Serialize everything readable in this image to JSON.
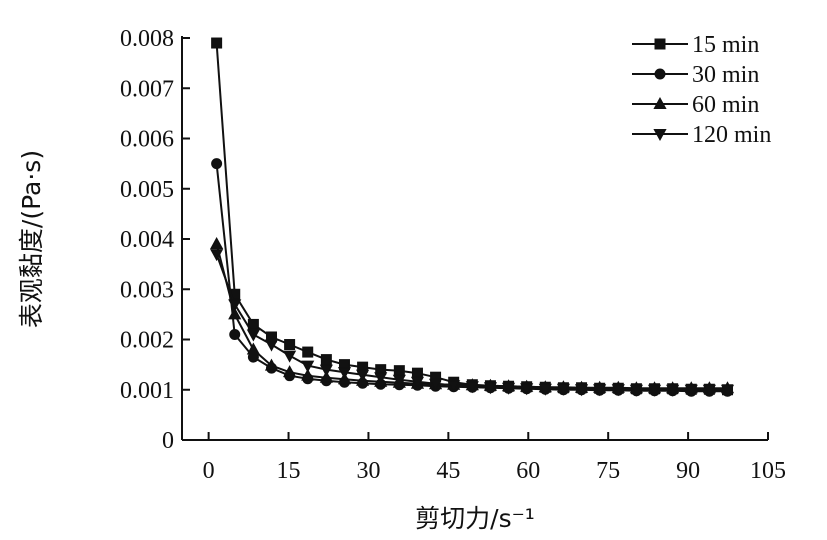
{
  "chart_data": {
    "type": "line",
    "title": "",
    "xlabel": "剪切力/s⁻¹",
    "ylabel": "表观黏度/(Pa·s)",
    "xlim": [
      -5,
      105
    ],
    "ylim": [
      0,
      0.008
    ],
    "x_ticks": [
      0,
      15,
      30,
      45,
      60,
      75,
      90,
      105
    ],
    "x_tick_labels": [
      "0",
      "15",
      "30",
      "45",
      "60",
      "75",
      "90",
      "105"
    ],
    "y_ticks": [
      0,
      0.001,
      0.002,
      0.003,
      0.004,
      0.005,
      0.006,
      0.007,
      0.008
    ],
    "y_tick_labels": [
      "0",
      "0.001",
      "0.002",
      "0.003",
      "0.004",
      "0.005",
      "0.006",
      "0.007",
      "0.008"
    ],
    "grid": false,
    "legend_position": "top-right",
    "x": [
      1.5,
      4.9,
      8.4,
      11.8,
      15.2,
      18.6,
      22.1,
      25.5,
      28.9,
      32.3,
      35.8,
      39.2,
      42.6,
      46.0,
      49.5,
      52.9,
      56.3,
      59.7,
      63.2,
      66.6,
      70.0,
      73.4,
      76.9,
      80.3,
      83.7,
      87.1,
      90.6,
      94.0,
      97.4
    ],
    "series": [
      {
        "name": "15 min",
        "marker": "square",
        "values": [
          0.0079,
          0.0029,
          0.0023,
          0.00205,
          0.0019,
          0.00175,
          0.0016,
          0.0015,
          0.00145,
          0.0014,
          0.00138,
          0.00133,
          0.00125,
          0.00115,
          0.0011,
          0.00108,
          0.00107,
          0.00106,
          0.00105,
          0.00104,
          0.00104,
          0.00103,
          0.00103,
          0.00102,
          0.00102,
          0.00102,
          0.00101,
          0.00101,
          0.001
        ]
      },
      {
        "name": "30 min",
        "marker": "circle",
        "values": [
          0.0055,
          0.0021,
          0.00165,
          0.00143,
          0.00128,
          0.00122,
          0.00118,
          0.00115,
          0.00113,
          0.00111,
          0.0011,
          0.00109,
          0.00107,
          0.00106,
          0.00105,
          0.00104,
          0.00103,
          0.00102,
          0.00101,
          0.001,
          0.001,
          0.00099,
          0.00099,
          0.00098,
          0.00098,
          0.00098,
          0.00097,
          0.00097,
          0.00097
        ]
      },
      {
        "name": "60 min",
        "marker": "triangle-up",
        "values": [
          0.0039,
          0.0025,
          0.0018,
          0.00148,
          0.00135,
          0.00128,
          0.00124,
          0.00121,
          0.00118,
          0.00116,
          0.00114,
          0.00112,
          0.00111,
          0.0011,
          0.00109,
          0.00108,
          0.00107,
          0.00106,
          0.00105,
          0.00105,
          0.00104,
          0.00104,
          0.00104,
          0.00103,
          0.00103,
          0.00103,
          0.00103,
          0.00103,
          0.00103
        ]
      },
      {
        "name": "120 min",
        "marker": "triangle-down",
        "values": [
          0.0037,
          0.0027,
          0.0021,
          0.0019,
          0.00168,
          0.00148,
          0.0014,
          0.00135,
          0.0013,
          0.00125,
          0.0012,
          0.00116,
          0.00112,
          0.00109,
          0.00107,
          0.00105,
          0.00104,
          0.00103,
          0.00102,
          0.00102,
          0.00101,
          0.00101,
          0.00101,
          0.001,
          0.001,
          0.001,
          0.001,
          0.001,
          0.001
        ]
      }
    ]
  }
}
